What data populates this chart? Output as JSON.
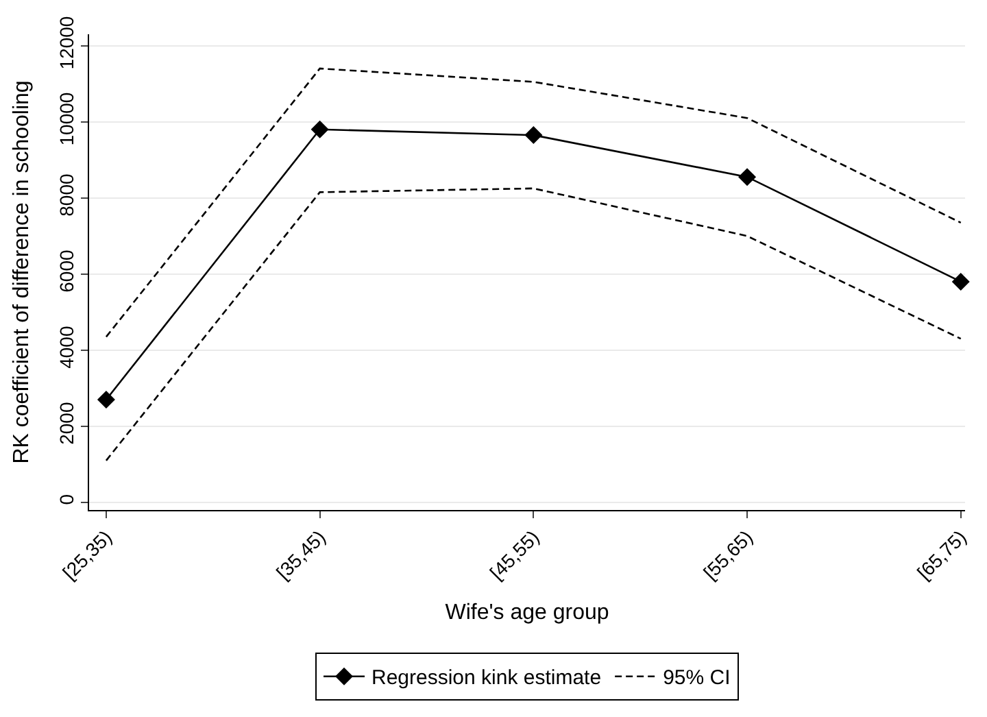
{
  "chart_data": {
    "type": "line",
    "xlabel": "Wife's age group",
    "ylabel": "RK coefficient of difference in schooling",
    "categories": [
      "[25,35)",
      "[35,45)",
      "[45,55)",
      "[55,65)",
      "[65,75)"
    ],
    "series": [
      {
        "name": "Regression kink estimate",
        "color": "#000000",
        "values": [
          2700,
          9800,
          9650,
          8550,
          5800
        ],
        "marker": "diamond",
        "line_style": "solid"
      },
      {
        "name": "95% CI",
        "color": "#000000",
        "values": [
          4350,
          11400,
          11050,
          10100,
          7350
        ],
        "marker": "none",
        "line_style": "dashed"
      },
      {
        "color": "#000000",
        "values": [
          1100,
          8150,
          8250,
          7000,
          4300
        ],
        "marker": "none",
        "line_style": "dashed"
      }
    ],
    "ylim": [
      -200,
      12300
    ],
    "yticks": [
      0,
      2000,
      4000,
      6000,
      8000,
      10000,
      12000
    ],
    "grid": "y",
    "legend": "bottom"
  }
}
